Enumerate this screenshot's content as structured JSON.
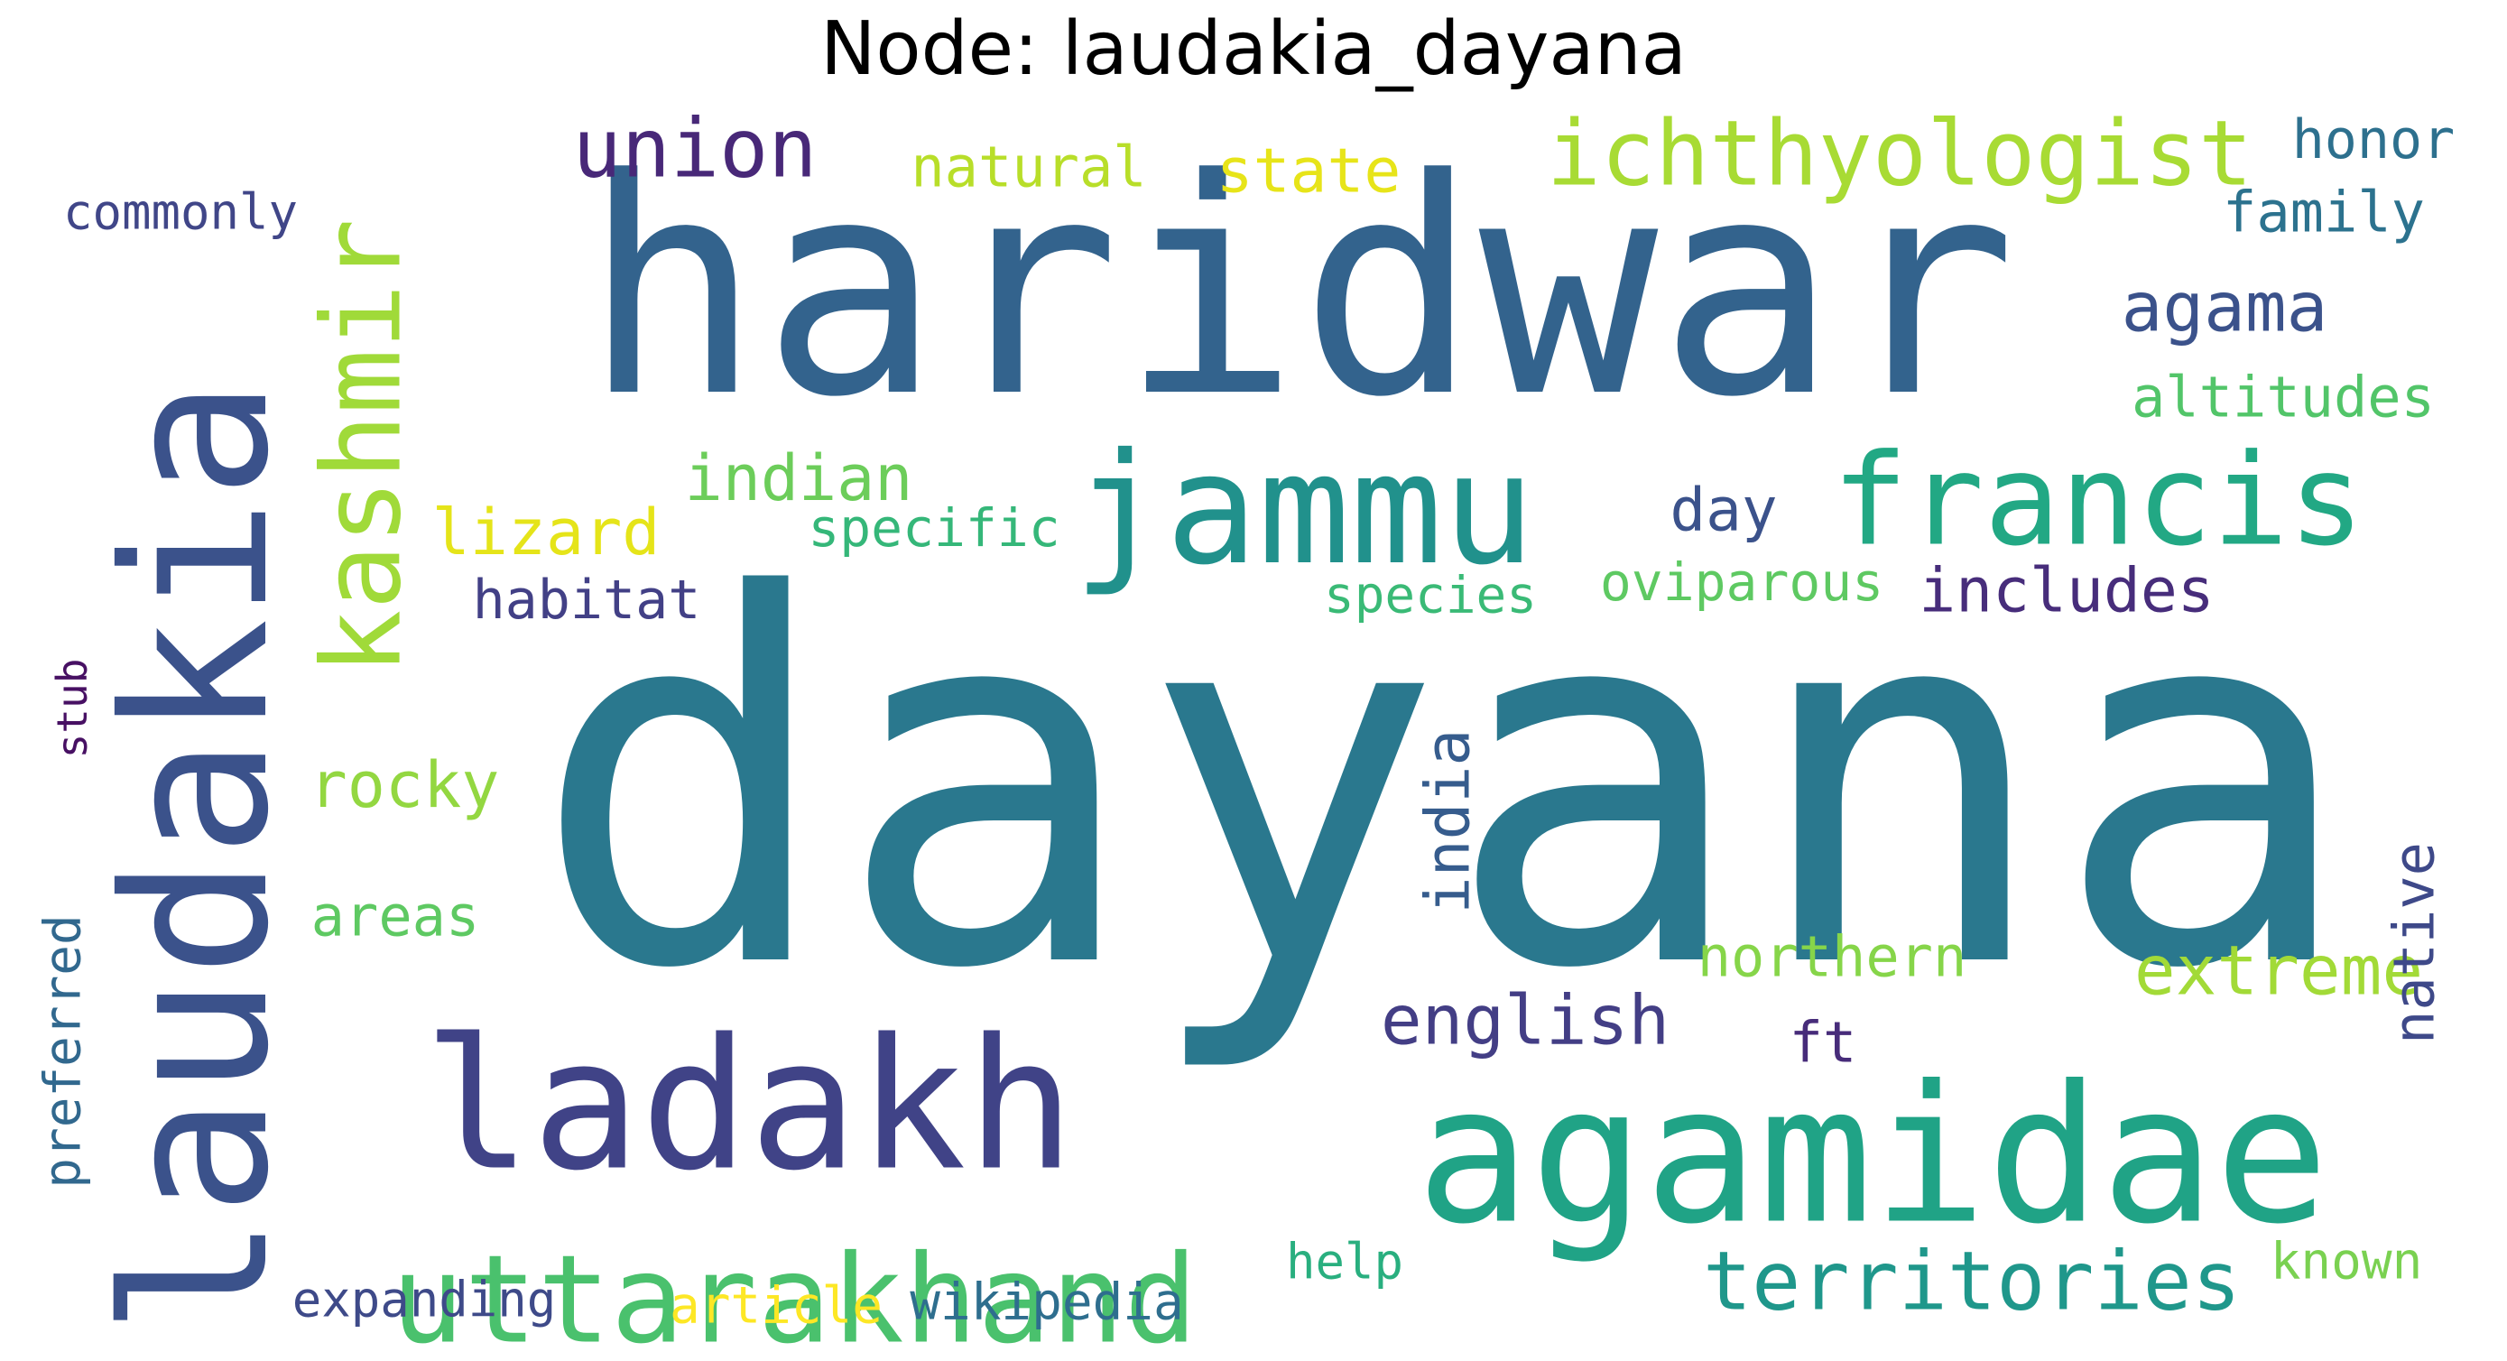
{
  "title": "Node: laudakia_dayana",
  "words": [
    {
      "text": "dayana",
      "color": "#2a788e"
    },
    {
      "text": "haridwar",
      "color": "#33638d"
    },
    {
      "text": "laudakia",
      "color": "#3b528b"
    },
    {
      "text": "agamidae",
      "color": "#20a386"
    },
    {
      "text": "ladakh",
      "color": "#404387"
    },
    {
      "text": "jammu",
      "color": "#21918c"
    },
    {
      "text": "uttarakhand",
      "color": "#4ac16d"
    },
    {
      "text": "francis",
      "color": "#22a884"
    },
    {
      "text": "kashmir",
      "color": "#a0da39"
    },
    {
      "text": "ichthyologist",
      "color": "#a8db34"
    },
    {
      "text": "territories",
      "color": "#1f978b"
    },
    {
      "text": "union",
      "color": "#482878"
    },
    {
      "text": "agama",
      "color": "#3b528b"
    },
    {
      "text": "english",
      "color": "#433e85"
    },
    {
      "text": "indian",
      "color": "#6ccd5a"
    },
    {
      "text": "extreme",
      "color": "#a2da37"
    },
    {
      "text": "natural",
      "color": "#b8de29"
    },
    {
      "text": "state",
      "color": "#e7e419"
    },
    {
      "text": "lizard",
      "color": "#e5e419"
    },
    {
      "text": "includes",
      "color": "#472d7b"
    },
    {
      "text": "rocky",
      "color": "#93d741"
    },
    {
      "text": "altitudes",
      "color": "#52c569"
    },
    {
      "text": "family",
      "color": "#2c728e"
    },
    {
      "text": "honor",
      "color": "#2d708e"
    },
    {
      "text": "commonly",
      "color": "#404688"
    },
    {
      "text": "day",
      "color": "#3b528b"
    },
    {
      "text": "habitat",
      "color": "#424086"
    },
    {
      "text": "specific",
      "color": "#35b779"
    },
    {
      "text": "oviparous",
      "color": "#5ec962"
    },
    {
      "text": "species",
      "color": "#3aba76"
    },
    {
      "text": "northern",
      "color": "#86d549"
    },
    {
      "text": "areas",
      "color": "#5ec962"
    },
    {
      "text": "india",
      "color": "#365c8d"
    },
    {
      "text": "native",
      "color": "#3e4989"
    },
    {
      "text": "ft",
      "color": "#472c7a"
    },
    {
      "text": "preferred",
      "color": "#31688e"
    },
    {
      "text": "stub",
      "color": "#471063"
    },
    {
      "text": "help",
      "color": "#29af7f"
    },
    {
      "text": "known",
      "color": "#7ad151"
    },
    {
      "text": "expanding",
      "color": "#3e4a89"
    },
    {
      "text": "article",
      "color": "#fde725"
    },
    {
      "text": "wikipedia",
      "color": "#2e6e8e"
    }
  ]
}
